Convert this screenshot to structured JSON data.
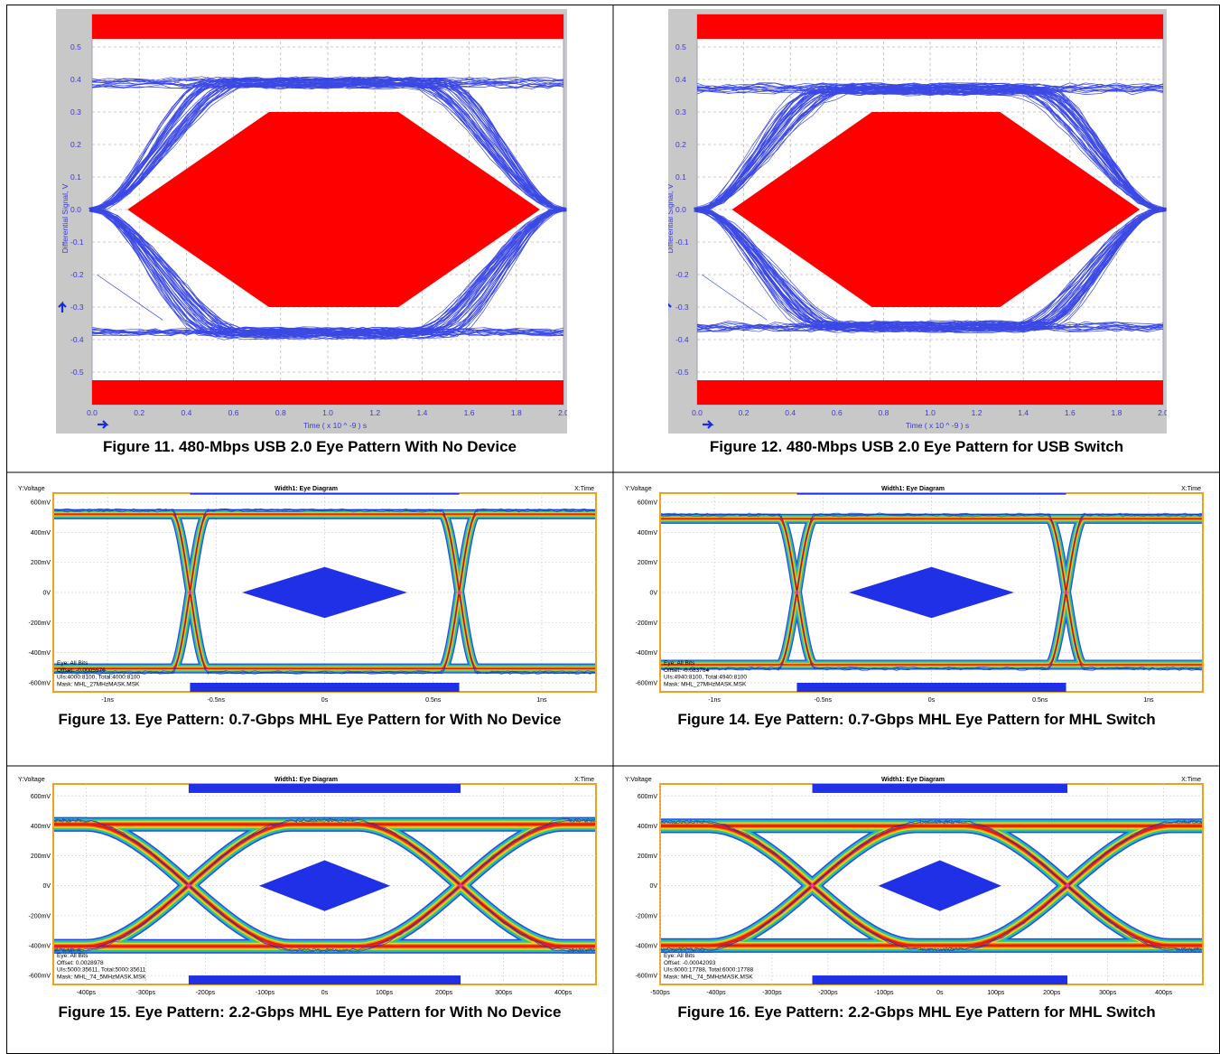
{
  "figures": [
    {
      "id": "fig11",
      "caption": "Figure 11. 480-Mbps USB 2.0 Eye Pattern With No Device",
      "chart_data": {
        "type": "eye-diagram-usb",
        "xlabel": "Time  ( x 10 ^ -9 ) s",
        "ylabel": "Differential Signal, V",
        "x_ticks": [
          "0.0",
          "0.2",
          "0.4",
          "0.6",
          "0.8",
          "1.0",
          "1.2",
          "1.4",
          "1.6",
          "1.8",
          "2.0"
        ],
        "y_ticks": [
          "0.5",
          "0.4",
          "0.3",
          "0.2",
          "0.1",
          "0.0",
          "-0.1",
          "-0.2",
          "-0.3",
          "-0.4",
          "-0.5"
        ],
        "xlim": [
          0,
          2.0
        ],
        "ylim": [
          -0.6,
          0.6
        ],
        "high_level": 0.39,
        "low_level": -0.38,
        "crossings": [
          0.0,
          2.0
        ],
        "mask_polygon": [
          [
            0.15,
            0.0
          ],
          [
            0.75,
            0.3
          ],
          [
            1.3,
            0.3
          ],
          [
            1.9,
            0.0
          ],
          [
            1.3,
            -0.3
          ],
          [
            0.75,
            -0.3
          ]
        ],
        "top_bar_lower": 0.525,
        "bottom_bar_upper": -0.525,
        "trace_color": "#1a2ae0",
        "mask_color": "#ff0000"
      }
    },
    {
      "id": "fig12",
      "caption": "Figure 12. 480-Mbps USB 2.0 Eye Pattern for USB Switch",
      "chart_data": {
        "type": "eye-diagram-usb",
        "xlabel": "Time  ( x 10 ^ -9 ) s",
        "ylabel": "Differential Signal, V",
        "x_ticks": [
          "0.0",
          "0.2",
          "0.4",
          "0.6",
          "0.8",
          "1.0",
          "1.2",
          "1.4",
          "1.6",
          "1.8",
          "2.0"
        ],
        "y_ticks": [
          "0.5",
          "0.4",
          "0.3",
          "0.2",
          "0.1",
          "0.0",
          "-0.1",
          "-0.2",
          "-0.3",
          "-0.4",
          "-0.5"
        ],
        "xlim": [
          0,
          2.0
        ],
        "ylim": [
          -0.6,
          0.6
        ],
        "high_level": 0.37,
        "low_level": -0.36,
        "crossings": [
          0.0,
          2.0
        ],
        "mask_polygon": [
          [
            0.15,
            0.0
          ],
          [
            0.75,
            0.3
          ],
          [
            1.3,
            0.3
          ],
          [
            1.9,
            0.0
          ],
          [
            1.3,
            -0.3
          ],
          [
            0.75,
            -0.3
          ]
        ],
        "top_bar_lower": 0.525,
        "bottom_bar_upper": -0.525,
        "trace_color": "#1a2ae0",
        "mask_color": "#ff0000"
      }
    },
    {
      "id": "fig13",
      "caption": "Figure 13. Eye Pattern: 0.7-Gbps MHL Eye Pattern for With No Device",
      "chart_data": {
        "type": "eye-diagram-mhl",
        "header_left": "Y:Voltage",
        "header_center": "Width1: Eye Diagram",
        "header_right": "X:Time",
        "x_ticks": [
          "-1ns",
          "-0.5ns",
          "0s",
          "0.5ns",
          "1ns"
        ],
        "x_tick_values": [
          -1.0,
          -0.5,
          0.0,
          0.5,
          1.0
        ],
        "y_ticks": [
          "600mV",
          "400mV",
          "200mV",
          "0V",
          "-200mV",
          "-400mV",
          "-600mV"
        ],
        "y_tick_values": [
          600,
          400,
          200,
          0,
          -200,
          -400,
          -600
        ],
        "xlim": [
          -1.25,
          1.25
        ],
        "ylim": [
          -660,
          660
        ],
        "high_level": 520,
        "low_level": -505,
        "crossings": [
          -0.62,
          0.62
        ],
        "rise_shape": "sharp",
        "mask_diamond": {
          "x_range": [
            -0.38,
            0.38
          ],
          "y_half": 170
        },
        "top_bar": {
          "x_range": [
            -0.62,
            0.62
          ],
          "y_lower": 650
        },
        "bottom_bar": {
          "x_range": [
            -0.62,
            0.62
          ],
          "y_upper": -600
        },
        "info": [
          "Eye: All Bits",
          "Offset: -0.0005576",
          "UIs:4000:8100, Total:4000:8100",
          "Mask: MHL_27MHzMASK.MSK"
        ],
        "mask_color": "#1f30e6",
        "frame_color": "#f0a020"
      }
    },
    {
      "id": "fig14",
      "caption": "Figure 14. Eye Pattern: 0.7-Gbps MHL Eye Pattern for MHL Switch",
      "chart_data": {
        "type": "eye-diagram-mhl",
        "header_left": "Y:Voltage",
        "header_center": "Width1: Eye Diagram",
        "header_right": "X:Time",
        "x_ticks": [
          "-1ns",
          "-0.5ns",
          "0s",
          "0.5ns",
          "1ns"
        ],
        "x_tick_values": [
          -1.0,
          -0.5,
          0.0,
          0.5,
          1.0
        ],
        "y_ticks": [
          "600mV",
          "400mV",
          "200mV",
          "0V",
          "-200mV",
          "-400mV",
          "-600mV"
        ],
        "y_tick_values": [
          600,
          400,
          200,
          0,
          -200,
          -400,
          -600
        ],
        "xlim": [
          -1.25,
          1.25
        ],
        "ylim": [
          -660,
          660
        ],
        "high_level": 490,
        "low_level": -480,
        "crossings": [
          -0.62,
          0.62
        ],
        "rise_shape": "sharp",
        "mask_diamond": {
          "x_range": [
            -0.38,
            0.38
          ],
          "y_half": 170
        },
        "top_bar": {
          "x_range": [
            -0.62,
            0.62
          ],
          "y_lower": 650
        },
        "bottom_bar": {
          "x_range": [
            -0.62,
            0.62
          ],
          "y_upper": -600
        },
        "info": [
          "Eye: All Bits",
          "Offset: -0.083764",
          "UIs:4940:8100, Total:4940:8100",
          "Mask: MHL_27MHzMASK.MSK"
        ],
        "mask_color": "#1f30e6",
        "frame_color": "#f0a020"
      }
    },
    {
      "id": "fig15",
      "caption": "Figure 15. Eye Pattern: 2.2-Gbps MHL Eye Pattern for With No Device",
      "chart_data": {
        "type": "eye-diagram-mhl",
        "header_left": "Y:Voltage",
        "header_center": "Width1: Eye Diagram",
        "header_right": "X:Time",
        "x_ticks": [
          "-400ps",
          "-300ps",
          "-200ps",
          "-100ps",
          "0s",
          "100ps",
          "200ps",
          "300ps",
          "400ps"
        ],
        "x_tick_values": [
          -400,
          -300,
          -200,
          -100,
          0,
          100,
          200,
          300,
          400
        ],
        "y_ticks": [
          "600mV",
          "400mV",
          "200mV",
          "0V",
          "-200mV",
          "-400mV",
          "-600mV"
        ],
        "y_tick_values": [
          600,
          400,
          200,
          0,
          -200,
          -400,
          -600
        ],
        "xlim": [
          -455,
          455
        ],
        "ylim": [
          -660,
          680
        ],
        "high_level": 410,
        "low_level": -405,
        "crossings": [
          -228,
          228
        ],
        "rise_shape": "soft",
        "mask_diamond": {
          "x_range": [
            -110,
            110
          ],
          "y_half": 170
        },
        "top_bar": {
          "x_range": [
            -228,
            228
          ],
          "y_lower": 620
        },
        "bottom_bar": {
          "x_range": [
            -228,
            228
          ],
          "y_upper": -600
        },
        "info": [
          "Eye: All Bits",
          "Offset: 0.0028978",
          "UIs:5000:35611, Total:5000:35611",
          "Mask: MHL_74_5MHzMASK.MSK"
        ],
        "mask_color": "#1f30e6",
        "frame_color": "#f0a020"
      }
    },
    {
      "id": "fig16",
      "caption": "Figure 16. Eye Pattern: 2.2-Gbps MHL Eye Pattern for MHL Switch",
      "chart_data": {
        "type": "eye-diagram-mhl",
        "header_left": "Y:Voltage",
        "header_center": "Width1: Eye Diagram",
        "header_right": "X:Time",
        "x_ticks": [
          "-500ps",
          "-400ps",
          "-300ps",
          "-200ps",
          "-100ps",
          "0s",
          "100ps",
          "200ps",
          "300ps",
          "400ps"
        ],
        "x_tick_values": [
          -500,
          -400,
          -300,
          -200,
          -100,
          0,
          100,
          200,
          300,
          400
        ],
        "y_ticks": [
          "600mV",
          "400mV",
          "200mV",
          "0V",
          "-200mV",
          "-400mV",
          "-600mV"
        ],
        "y_tick_values": [
          600,
          400,
          200,
          0,
          -200,
          -400,
          -600
        ],
        "xlim": [
          -500,
          470
        ],
        "ylim": [
          -660,
          680
        ],
        "high_level": 400,
        "low_level": -400,
        "crossings": [
          -228,
          228
        ],
        "rise_shape": "soft",
        "mask_diamond": {
          "x_range": [
            -110,
            110
          ],
          "y_half": 170
        },
        "top_bar": {
          "x_range": [
            -228,
            228
          ],
          "y_lower": 620
        },
        "bottom_bar": {
          "x_range": [
            -228,
            228
          ],
          "y_upper": -600
        },
        "info": [
          "Eye: All Bits",
          "Offset: -0.00042093",
          "UIs:6000:17788, Total:6000:17788",
          "Mask: MHL_74_5MHzMASK.MSK"
        ],
        "mask_color": "#1f30e6",
        "frame_color": "#f0a020"
      }
    }
  ]
}
